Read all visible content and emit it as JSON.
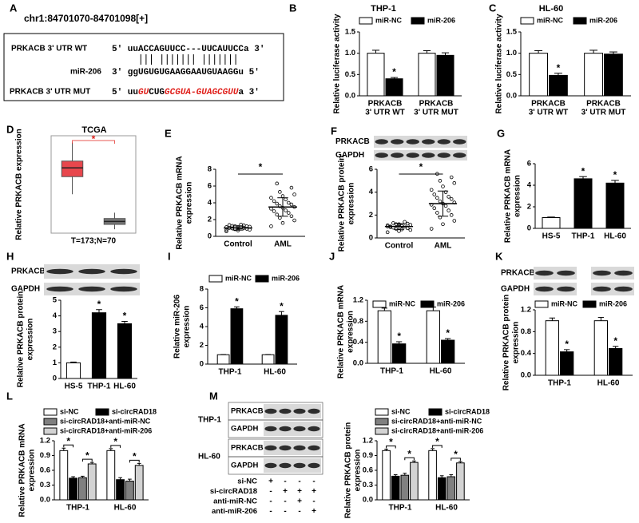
{
  "panel_a": {
    "label": "A",
    "locus": "chr1:84701070-84701098[+]",
    "wt_name": "PRKACB 3' UTR WT",
    "wt_seq": "5' uuACCAGUUCC---UUCAUUCCa 3'",
    "mir_name": "miR-206",
    "mir_seq": "3' ggUGUGUGAAGGAAUGUAAGGu 5'",
    "mut_name": "PRKACB 3' UTR MUT",
    "mut_seq": [
      {
        "text": "5' uu",
        "mutated": false
      },
      {
        "text": "GU",
        "mutated": true
      },
      {
        "text": "CUG",
        "mutated": false
      },
      {
        "text": "GCGUA-GUAGCGUU",
        "mutated": true
      },
      {
        "text": "a 3'",
        "mutated": false
      }
    ],
    "mutation_color": "#e0201b"
  },
  "panel_m_blot": {
    "label": "M",
    "cell_lines": [
      "THP-1",
      "HL-60"
    ],
    "rows": [
      "PRKACB",
      "GAPDH"
    ],
    "conditions": [
      {
        "name": "si-NC",
        "signs": [
          "+",
          "-",
          "-",
          "-"
        ]
      },
      {
        "name": "si-circRAD18",
        "signs": [
          "-",
          "+",
          "+",
          "+"
        ]
      },
      {
        "name": "anti-miR-NC",
        "signs": [
          "-",
          "-",
          "+",
          "-"
        ]
      },
      {
        "name": "anti-miR-206",
        "signs": [
          "-",
          "-",
          "-",
          "+"
        ]
      }
    ]
  },
  "chart_data": [
    {
      "panel": "B",
      "type": "bar",
      "title": "THP-1",
      "ylabel": "Relative luciferase activity",
      "categories": [
        [
          "PRKACB",
          "3' UTR WT"
        ],
        [
          "PRKACB",
          "3' UTR MUT"
        ]
      ],
      "series": [
        {
          "name": "miR-NC",
          "color": "#ffffff",
          "values": [
            1.0,
            1.0
          ],
          "errors": [
            0.07,
            0.06
          ]
        },
        {
          "name": "miR-206",
          "color": "#000000",
          "values": [
            0.4,
            0.95
          ],
          "errors": [
            0.03,
            0.06
          ],
          "annotations": [
            "*",
            null
          ]
        }
      ],
      "ylim": [
        0,
        1.5
      ],
      "yticks": [
        {
          "value": 0,
          "label": "0.0"
        },
        0.5,
        {
          "value": 1,
          "label": "1.0"
        },
        1.5
      ]
    },
    {
      "panel": "C",
      "type": "bar",
      "title": "HL-60",
      "ylabel": "Relative luciferase activity",
      "categories": [
        [
          "PRKACB",
          "3' UTR WT"
        ],
        [
          "PRKACB",
          "3' UTR MUT"
        ]
      ],
      "series": [
        {
          "name": "miR-NC",
          "color": "#ffffff",
          "values": [
            1.0,
            1.0
          ],
          "errors": [
            0.06,
            0.07
          ]
        },
        {
          "name": "miR-206",
          "color": "#000000",
          "values": [
            0.48,
            0.98
          ],
          "errors": [
            0.05,
            0.05
          ],
          "annotations": [
            "*",
            null
          ]
        }
      ],
      "ylim": [
        0,
        1.5
      ],
      "yticks": [
        {
          "value": 0,
          "label": "0.0"
        },
        0.5,
        {
          "value": 1,
          "label": "1.0"
        },
        1.5
      ]
    },
    {
      "panel": "D",
      "type": "box",
      "title": "TCGA",
      "ylabel": "Relative PRKACB expression",
      "xlabel": "T=173;N=70",
      "boxes": [
        {
          "color": "#e8474d",
          "whislo": 4.0,
          "q1": 5.8,
          "median": 6.7,
          "q3": 7.4,
          "whishi": 9.3
        },
        {
          "color": "#777777",
          "whislo": 0.4,
          "q1": 0.9,
          "median": 1.2,
          "q3": 1.5,
          "whishi": 2.1
        }
      ],
      "annotation": "*",
      "annotation_color": "#e0201b",
      "ylim": [
        0,
        10
      ]
    },
    {
      "panel": "E",
      "type": "dot",
      "ylabel": [
        "Relative PRKACB mRNA",
        "expression"
      ],
      "categories": [
        "Control",
        "AML"
      ],
      "points": [
        [
          0.6,
          0.7,
          0.8,
          0.85,
          0.9,
          0.95,
          1.0,
          1.0,
          1.05,
          1.1,
          1.1,
          1.15,
          1.2,
          1.2,
          1.25,
          1.3,
          1.35,
          1.4,
          0.75,
          0.9
        ],
        [
          1.2,
          1.6,
          1.9,
          2.2,
          2.4,
          2.6,
          2.8,
          3.0,
          3.1,
          3.3,
          3.4,
          3.5,
          3.6,
          3.8,
          3.9,
          4.0,
          4.2,
          4.4,
          4.6,
          4.8,
          5.0,
          5.3,
          5.8,
          6.3
        ]
      ],
      "mean": [
        1.0,
        3.5
      ],
      "sd": [
        0.25,
        1.1
      ],
      "annotation": "*",
      "ylim": [
        0,
        8
      ],
      "yticks": [
        0,
        2,
        4,
        6,
        8
      ]
    },
    {
      "panel": "F",
      "type": "dot",
      "blot": [
        "PRKACB",
        "GAPDH"
      ],
      "ylabel": [
        "Relative PRKACB protein",
        "expression"
      ],
      "categories": [
        "Control",
        "AML"
      ],
      "points": [
        [
          0.5,
          0.6,
          0.7,
          0.8,
          0.85,
          0.9,
          1.0,
          1.0,
          1.05,
          1.1,
          1.1,
          1.15,
          1.2,
          1.25,
          1.3,
          1.4,
          0.95,
          0.75,
          1.0,
          1.2
        ],
        [
          0.8,
          1.2,
          1.5,
          1.8,
          2.0,
          2.2,
          2.4,
          2.6,
          2.8,
          2.9,
          3.0,
          3.1,
          3.2,
          3.4,
          3.5,
          3.6,
          3.8,
          4.0,
          4.2,
          4.5,
          4.8,
          5.0,
          5.3,
          5.6
        ]
      ],
      "mean": [
        1.0,
        3.0
      ],
      "sd": [
        0.25,
        1.1
      ],
      "annotation": "*",
      "ylim": [
        0,
        6
      ],
      "yticks": [
        0,
        2,
        4,
        6
      ]
    },
    {
      "panel": "G",
      "type": "bar",
      "ylabel": [
        "Relative PRKACB mRNA",
        "expression"
      ],
      "categories": [
        "HS-5",
        "THP-1",
        "HL-60"
      ],
      "values": [
        1.0,
        4.6,
        4.2
      ],
      "errors": [
        0.05,
        0.2,
        0.25
      ],
      "colors": [
        "#ffffff",
        "#000000",
        "#000000"
      ],
      "annotations": [
        null,
        "*",
        "*"
      ],
      "ylim": [
        0,
        6
      ],
      "yticks": [
        0,
        2,
        4,
        6
      ]
    },
    {
      "panel": "H",
      "type": "bar",
      "blot": [
        "PRKACB",
        "GAPDH"
      ],
      "ylabel": [
        "Relative PRKACB protein",
        "expression"
      ],
      "categories": [
        "HS-5",
        "THP-1",
        "HL-60"
      ],
      "values": [
        1.0,
        4.2,
        3.5
      ],
      "errors": [
        0.05,
        0.2,
        0.15
      ],
      "colors": [
        "#ffffff",
        "#000000",
        "#000000"
      ],
      "annotations": [
        null,
        "*",
        "*"
      ],
      "ylim": [
        0,
        5
      ],
      "yticks": [
        0,
        1,
        2,
        3,
        4,
        5
      ]
    },
    {
      "panel": "I",
      "type": "bar",
      "ylabel": [
        "Relative miR-206",
        "expression"
      ],
      "categories": [
        "THP-1",
        "HL-60"
      ],
      "series": [
        {
          "name": "miR-NC",
          "color": "#ffffff",
          "values": [
            1.0,
            1.0
          ],
          "errors": [
            0.02,
            0.02
          ]
        },
        {
          "name": "miR-206",
          "color": "#000000",
          "values": [
            5.9,
            5.2
          ],
          "errors": [
            0.2,
            0.4
          ],
          "annotations": [
            "*",
            "*"
          ]
        }
      ],
      "ylim": [
        0,
        8
      ],
      "yticks": [
        0,
        2,
        4,
        6,
        8
      ]
    },
    {
      "panel": "J",
      "type": "bar",
      "ylabel": [
        "Relative PRKACB mRNA",
        "expression"
      ],
      "categories": [
        "THP-1",
        "HL-60"
      ],
      "series": [
        {
          "name": "miR-NC",
          "color": "#ffffff",
          "values": [
            1.0,
            1.0
          ],
          "errors": [
            0.05,
            0.07
          ]
        },
        {
          "name": "miR-206",
          "color": "#000000",
          "values": [
            0.37,
            0.44
          ],
          "errors": [
            0.04,
            0.03
          ],
          "annotations": [
            "*",
            "*"
          ]
        }
      ],
      "ylim": [
        0,
        1.2
      ],
      "yticks": [
        {
          "value": 0,
          "label": "0.0"
        },
        0.4,
        0.8,
        1.2
      ]
    },
    {
      "panel": "K",
      "type": "bar",
      "blot": [
        "PRKACB",
        "GAPDH"
      ],
      "ylabel": [
        "Relative PRKACB protein",
        "expression"
      ],
      "categories": [
        "THP-1",
        "HL-60"
      ],
      "series": [
        {
          "name": "miR-NC",
          "color": "#ffffff",
          "values": [
            1.0,
            1.0
          ],
          "errors": [
            0.05,
            0.06
          ]
        },
        {
          "name": "miR-206",
          "color": "#000000",
          "values": [
            0.43,
            0.49
          ],
          "errors": [
            0.04,
            0.04
          ],
          "annotations": [
            "*",
            "*"
          ]
        }
      ],
      "ylim": [
        0,
        1.2
      ],
      "yticks": [
        {
          "value": 0,
          "label": "0.0"
        },
        0.4,
        0.8,
        1.2
      ]
    },
    {
      "panel": "L",
      "type": "bar",
      "bracket": true,
      "ylabel": [
        "Relative PRKACB mRNA",
        "expression"
      ],
      "categories": [
        "THP-1",
        "HL-60"
      ],
      "series": [
        {
          "name": "si-NC",
          "color": "#ffffff",
          "values": [
            1.0,
            1.0
          ],
          "errors": [
            0.05,
            0.04
          ]
        },
        {
          "name": "si-circRAD18",
          "color": "#000000",
          "values": [
            0.44,
            0.41
          ],
          "errors": [
            0.03,
            0.04
          ],
          "annotations": [
            "*",
            "*"
          ]
        },
        {
          "name": "si-circRAD18+anti-miR-NC",
          "color": "#808080",
          "values": [
            0.45,
            0.38
          ],
          "errors": [
            0.03,
            0.04
          ]
        },
        {
          "name": "si-circRAD18+anti-miR-206",
          "color": "#d3d3d3",
          "values": [
            0.73,
            0.7
          ],
          "errors": [
            0.03,
            0.04
          ],
          "annotations": [
            "*",
            "*"
          ]
        }
      ],
      "ylim": [
        0,
        1.2
      ],
      "yticks": [
        {
          "value": 0,
          "label": "0.0"
        },
        0.3,
        0.6,
        0.9,
        1.2
      ]
    },
    {
      "type": "bar",
      "bracket": true,
      "ylabel": [
        "Relative PRKACB protein",
        "expression"
      ],
      "categories": [
        "THP-1",
        "HL-60"
      ],
      "series": [
        {
          "name": "si-NC",
          "color": "#ffffff",
          "values": [
            1.0,
            1.0
          ],
          "errors": [
            0.03,
            0.04
          ]
        },
        {
          "name": "si-circRAD18",
          "color": "#000000",
          "values": [
            0.48,
            0.45
          ],
          "errors": [
            0.03,
            0.04
          ],
          "annotations": [
            "*",
            "*"
          ]
        },
        {
          "name": "si-circRAD18+anti-miR-NC",
          "color": "#808080",
          "values": [
            0.5,
            0.47
          ],
          "errors": [
            0.04,
            0.04
          ]
        },
        {
          "name": "si-circRAD18+anti-miR-206",
          "color": "#d3d3d3",
          "values": [
            0.76,
            0.75
          ],
          "errors": [
            0.03,
            0.03
          ],
          "annotations": [
            "*",
            "*"
          ]
        }
      ],
      "ylim": [
        0,
        1.2
      ],
      "yticks": [
        {
          "value": 0,
          "label": "0.0"
        },
        0.3,
        0.6,
        0.9,
        1.2
      ]
    }
  ]
}
